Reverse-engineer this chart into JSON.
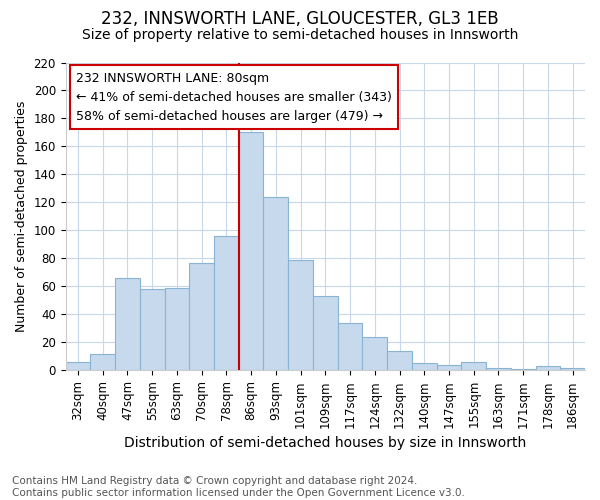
{
  "title": "232, INNSWORTH LANE, GLOUCESTER, GL3 1EB",
  "subtitle": "Size of property relative to semi-detached houses in Innsworth",
  "xlabel": "Distribution of semi-detached houses by size in Innsworth",
  "ylabel_text": "Number of semi-detached properties",
  "categories": [
    "32sqm",
    "40sqm",
    "47sqm",
    "55sqm",
    "63sqm",
    "70sqm",
    "78sqm",
    "86sqm",
    "93sqm",
    "101sqm",
    "109sqm",
    "117sqm",
    "124sqm",
    "132sqm",
    "140sqm",
    "147sqm",
    "155sqm",
    "163sqm",
    "171sqm",
    "178sqm",
    "186sqm"
  ],
  "values": [
    6,
    12,
    66,
    58,
    59,
    77,
    96,
    170,
    124,
    79,
    53,
    34,
    24,
    14,
    5,
    4,
    6,
    2,
    1,
    3,
    2
  ],
  "bar_color": "#c6d9ed",
  "bar_edge_color": "#8ab4d4",
  "property_label": "232 INNSWORTH LANE: 80sqm",
  "smaller_pct": 41,
  "smaller_count": 343,
  "larger_pct": 58,
  "larger_count": 479,
  "vline_x_index": 7.0,
  "vline_color": "#cc0000",
  "annotation_box_color": "#cc0000",
  "ylim": [
    0,
    220
  ],
  "yticks": [
    0,
    20,
    40,
    60,
    80,
    100,
    120,
    140,
    160,
    180,
    200,
    220
  ],
  "background_color": "#ffffff",
  "plot_background": "#ffffff",
  "footer_line1": "Contains HM Land Registry data © Crown copyright and database right 2024.",
  "footer_line2": "Contains public sector information licensed under the Open Government Licence v3.0.",
  "title_fontsize": 12,
  "subtitle_fontsize": 10,
  "xlabel_fontsize": 10,
  "ylabel_fontsize": 9,
  "tick_fontsize": 8.5,
  "annotation_fontsize": 9,
  "footer_fontsize": 7.5,
  "grid_color": "#c8d8e8"
}
